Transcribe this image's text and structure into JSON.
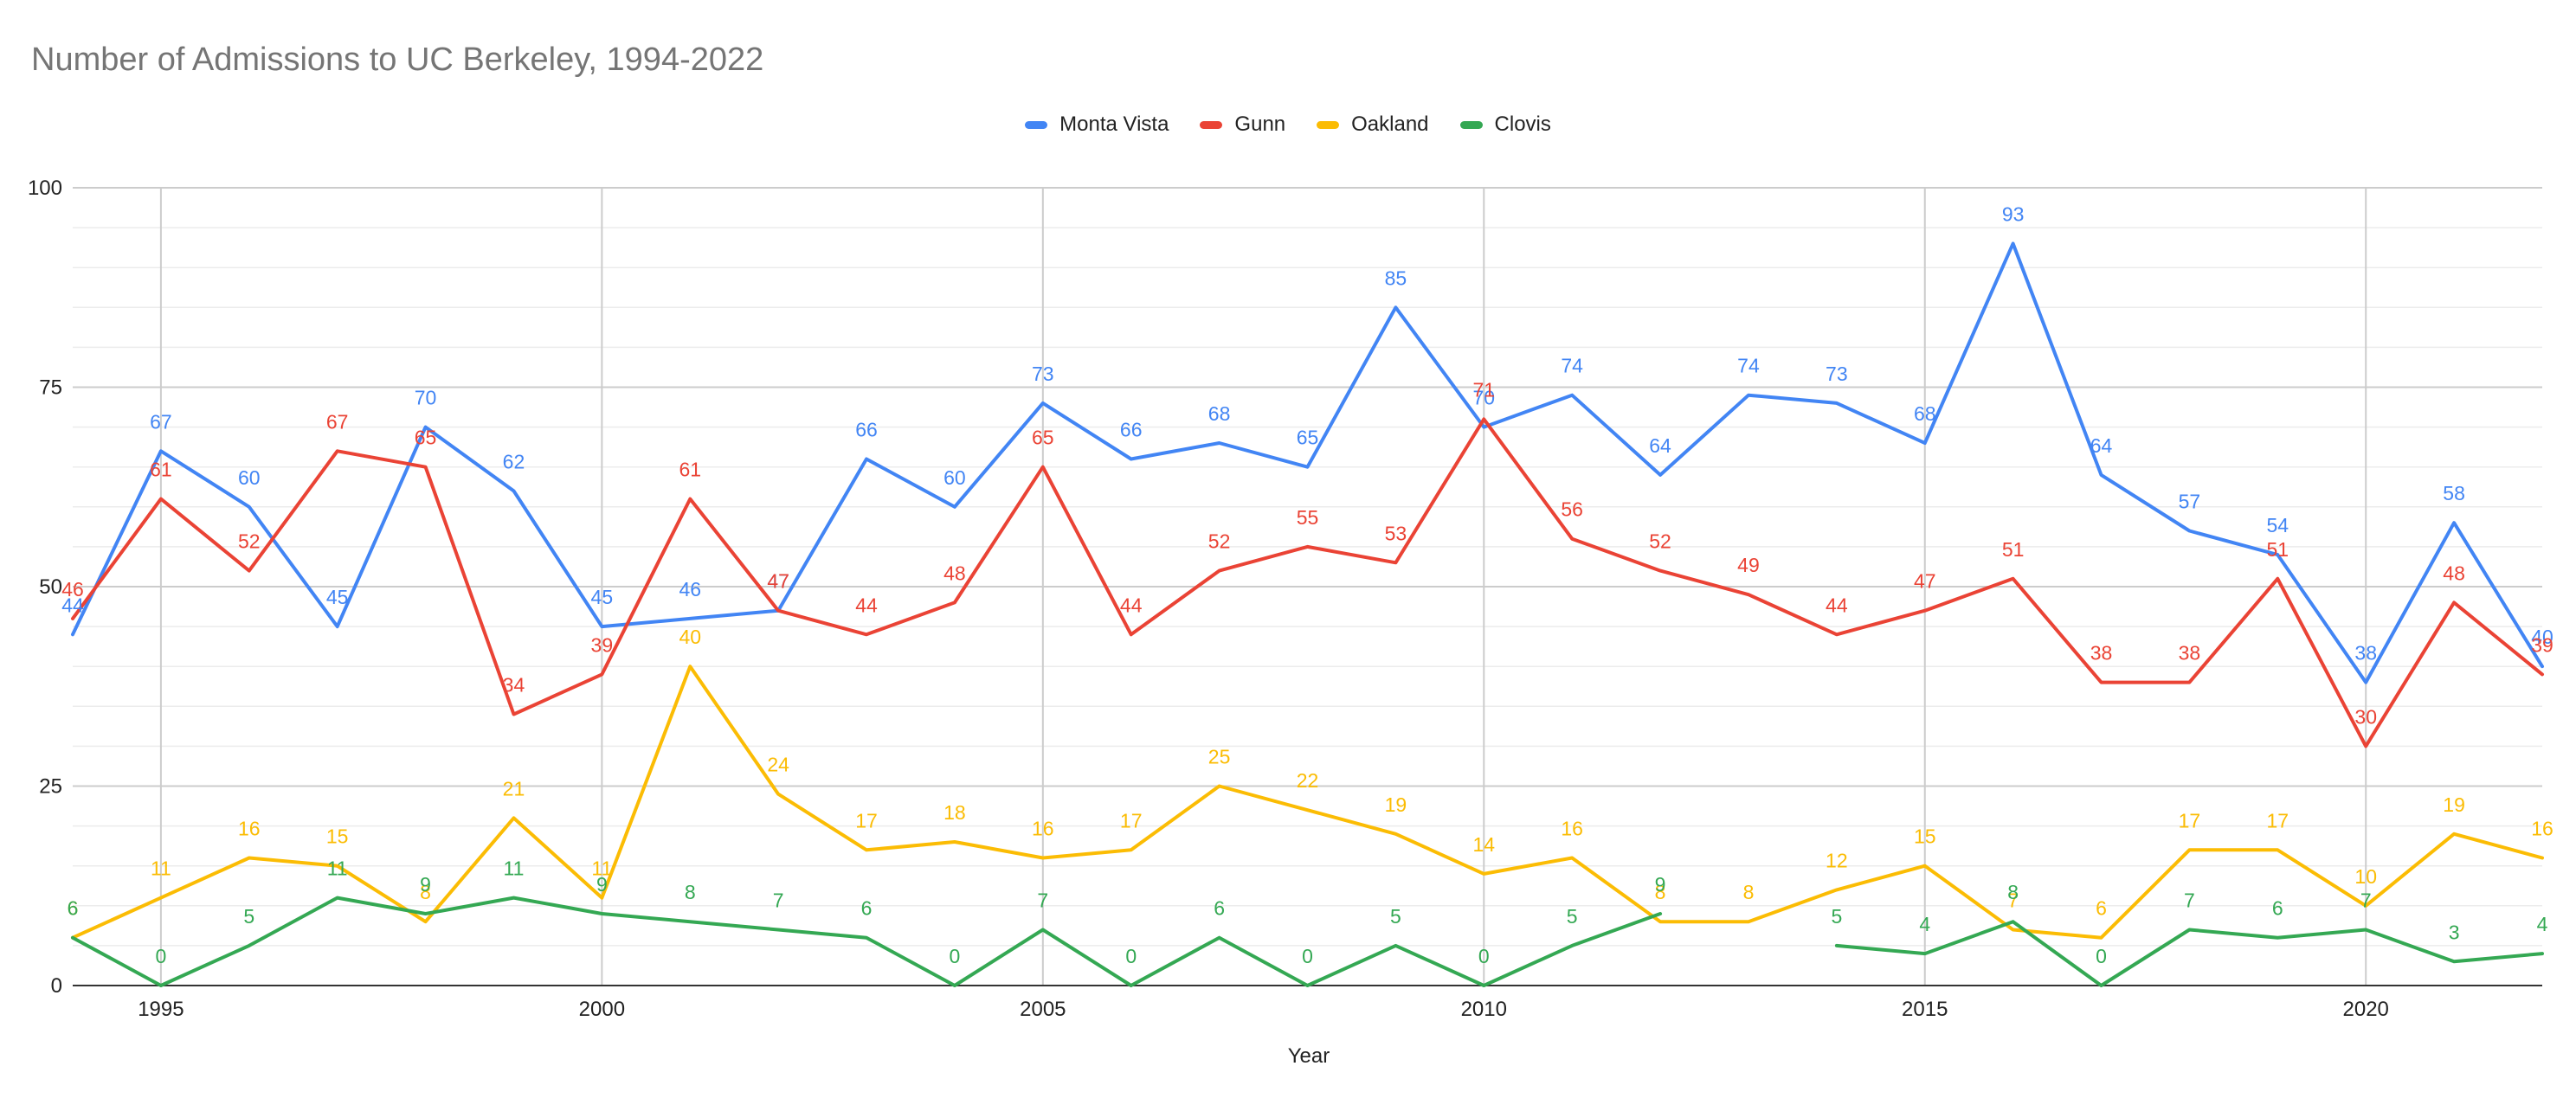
{
  "chart_data": {
    "type": "line",
    "title": "Number of Admissions to UC Berkeley, 1994-2022",
    "xlabel": "Year",
    "ylabel": "",
    "x": [
      1994,
      1995,
      1996,
      1997,
      1998,
      1999,
      2000,
      2001,
      2002,
      2003,
      2004,
      2005,
      2006,
      2007,
      2008,
      2009,
      2010,
      2011,
      2012,
      2013,
      2014,
      2015,
      2016,
      2017,
      2018,
      2019,
      2020,
      2021,
      2022
    ],
    "xlim": [
      1994,
      2022
    ],
    "ylim": [
      0,
      100
    ],
    "x_ticks": [
      1995,
      2000,
      2005,
      2010,
      2015,
      2020
    ],
    "y_ticks": [
      0,
      25,
      50,
      75,
      100
    ],
    "grid": true,
    "legend_position": "top",
    "series": [
      {
        "name": "Monta Vista",
        "color": "#4285F4",
        "values": [
          44,
          67,
          60,
          45,
          70,
          62,
          45,
          46,
          47,
          66,
          60,
          73,
          66,
          68,
          65,
          85,
          70,
          74,
          64,
          74,
          73,
          68,
          93,
          64,
          57,
          54,
          38,
          58,
          40
        ]
      },
      {
        "name": "Gunn",
        "color": "#EA4335",
        "values": [
          46,
          61,
          52,
          67,
          65,
          34,
          39,
          61,
          47,
          44,
          48,
          65,
          44,
          52,
          55,
          53,
          71,
          56,
          52,
          49,
          44,
          47,
          51,
          38,
          38,
          51,
          30,
          48,
          39
        ]
      },
      {
        "name": "Oakland",
        "color": "#FBBC04",
        "values": [
          6,
          11,
          16,
          15,
          8,
          21,
          11,
          40,
          24,
          17,
          18,
          16,
          17,
          25,
          22,
          19,
          14,
          16,
          8,
          8,
          12,
          15,
          7,
          6,
          17,
          17,
          10,
          19,
          16
        ]
      },
      {
        "name": "Clovis",
        "color": "#34A853",
        "values": [
          6,
          0,
          5,
          11,
          9,
          11,
          9,
          8,
          7,
          6,
          0,
          7,
          0,
          6,
          0,
          5,
          0,
          5,
          9,
          null,
          5,
          4,
          8,
          0,
          7,
          6,
          7,
          3,
          4
        ]
      }
    ]
  }
}
